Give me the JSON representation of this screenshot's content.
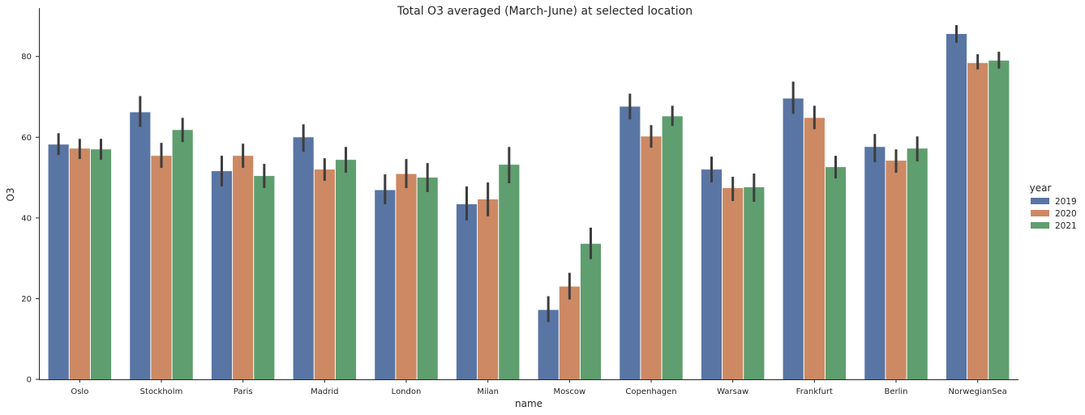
{
  "chart_data": {
    "type": "bar",
    "title": "Total O3 averaged (March-June) at selected location",
    "xlabel": "name",
    "ylabel": "O3",
    "ylim": [
      0,
      92
    ],
    "yticks": [
      0,
      20,
      40,
      60,
      80
    ],
    "grid": false,
    "legend": {
      "title": "year",
      "placement": "right"
    },
    "categories": [
      "Oslo",
      "Stockholm",
      "Paris",
      "Madrid",
      "London",
      "Milan",
      "Moscow",
      "Copenhagen",
      "Warsaw",
      "Frankfurt",
      "Berlin",
      "NorwegianSea"
    ],
    "series": [
      {
        "name": "2019",
        "color": "#5975a4",
        "values": [
          58.2,
          66.2,
          51.6,
          60.0,
          46.9,
          43.4,
          17.2,
          67.6,
          52.0,
          69.6,
          57.6,
          85.6
        ],
        "error_low": [
          55.6,
          62.6,
          47.8,
          56.4,
          43.4,
          39.4,
          14.2,
          64.4,
          48.8,
          65.8,
          53.8,
          83.4
        ],
        "error_high": [
          61.0,
          70.2,
          55.4,
          63.2,
          50.8,
          47.8,
          20.6,
          70.8,
          55.2,
          73.8,
          60.8,
          87.8
        ]
      },
      {
        "name": "2020",
        "color": "#cc8963",
        "values": [
          57.2,
          55.4,
          55.4,
          52.0,
          50.9,
          44.6,
          23.0,
          60.2,
          47.4,
          64.8,
          54.2,
          78.4
        ],
        "error_low": [
          54.6,
          52.4,
          52.4,
          49.2,
          47.4,
          40.4,
          19.8,
          57.4,
          44.2,
          62.0,
          51.2,
          76.8
        ],
        "error_high": [
          59.6,
          58.6,
          58.4,
          54.8,
          54.6,
          48.8,
          26.4,
          63.0,
          50.2,
          67.8,
          57.0,
          80.6
        ]
      },
      {
        "name": "2021",
        "color": "#5f9e6e",
        "values": [
          57.0,
          61.8,
          50.4,
          54.4,
          50.0,
          53.2,
          33.6,
          65.2,
          47.6,
          52.6,
          57.2,
          79.0
        ],
        "error_low": [
          54.4,
          58.8,
          47.4,
          51.2,
          46.4,
          48.6,
          29.8,
          62.8,
          44.0,
          49.8,
          54.0,
          77.0
        ],
        "error_high": [
          59.6,
          64.8,
          53.4,
          57.6,
          53.6,
          57.6,
          37.6,
          67.8,
          51.0,
          55.4,
          60.2,
          81.2
        ]
      }
    ]
  }
}
